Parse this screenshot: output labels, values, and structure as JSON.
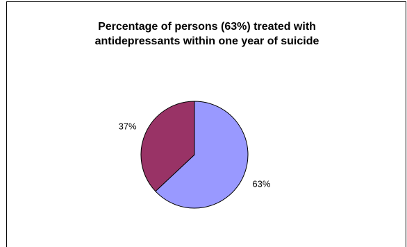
{
  "chart_data": {
    "type": "pie",
    "title": [
      "Percentage of persons (63%) treated with",
      "antidepressants within one year of suicide"
    ],
    "slices": [
      {
        "value": 63,
        "label": "63%",
        "color": "#9999ff"
      },
      {
        "value": 37,
        "label": "37%",
        "color": "#993366"
      }
    ],
    "legend": "none"
  }
}
